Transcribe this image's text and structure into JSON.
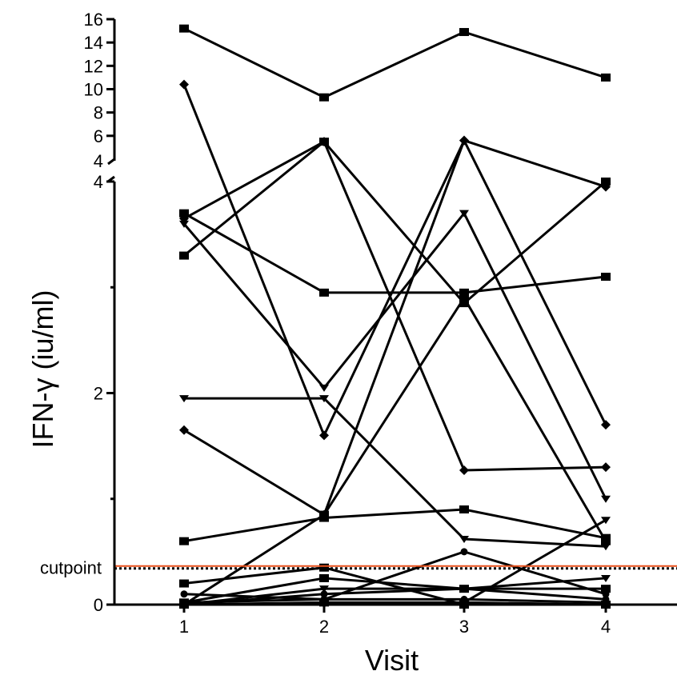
{
  "chart_data": {
    "type": "line",
    "xlabel": "Visit",
    "ylabel": "IFN-γ (iu/ml)",
    "x": [
      1,
      2,
      3,
      4
    ],
    "ylim_lower": [
      0,
      4
    ],
    "ylim_upper": [
      4,
      16
    ],
    "y_ticks_lower": [
      "0",
      "2",
      "4"
    ],
    "y_ticks_upper": [
      "4",
      "6",
      "8",
      "10",
      "12",
      "14",
      "16"
    ],
    "cutpoint": {
      "label": "cutpoint",
      "value": 0.35,
      "color": "#e8501c"
    },
    "series": [
      {
        "values": [
          15.2,
          9.3,
          14.9,
          11.0
        ],
        "marker": "square"
      },
      {
        "values": [
          10.4,
          1.6,
          5.6,
          1.7
        ],
        "marker": "diamond"
      },
      {
        "values": [
          3.3,
          5.5,
          2.85,
          4.0
        ],
        "marker": "square"
      },
      {
        "values": [
          3.65,
          5.5,
          1.27,
          1.3
        ],
        "marker": "diamond"
      },
      {
        "values": [
          3.7,
          2.95,
          2.95,
          3.1
        ],
        "marker": "square"
      },
      {
        "values": [
          3.6,
          2.05,
          3.7,
          1.0
        ],
        "marker": "triangle"
      },
      {
        "values": [
          1.65,
          0.85,
          5.6,
          3.95
        ],
        "marker": "diamond"
      },
      {
        "values": [
          1.95,
          1.95,
          0.62,
          0.55
        ],
        "marker": "triangle"
      },
      {
        "values": [
          0.6,
          0.82,
          0.9,
          0.63
        ],
        "marker": "square"
      },
      {
        "values": [
          0.0,
          0.85,
          2.9,
          0.6
        ],
        "marker": "square"
      },
      {
        "values": [
          0.2,
          0.35,
          0.0,
          0.0
        ],
        "marker": "square"
      },
      {
        "values": [
          0.1,
          0.05,
          0.5,
          0.1
        ],
        "marker": "circle"
      },
      {
        "values": [
          0.0,
          0.15,
          0.15,
          0.25
        ],
        "marker": "triangle"
      },
      {
        "values": [
          0.02,
          0.25,
          0.15,
          0.15
        ],
        "marker": "square"
      },
      {
        "values": [
          0.0,
          0.1,
          0.15,
          0.05
        ],
        "marker": "circle"
      },
      {
        "values": [
          0.0,
          0.02,
          0.02,
          0.0
        ],
        "marker": "square"
      },
      {
        "values": [
          0.02,
          0.05,
          0.05,
          0.02
        ],
        "marker": "circle"
      },
      {
        "values": [
          0.0,
          0.0,
          0.02,
          0.8
        ],
        "marker": "triangle"
      }
    ]
  }
}
